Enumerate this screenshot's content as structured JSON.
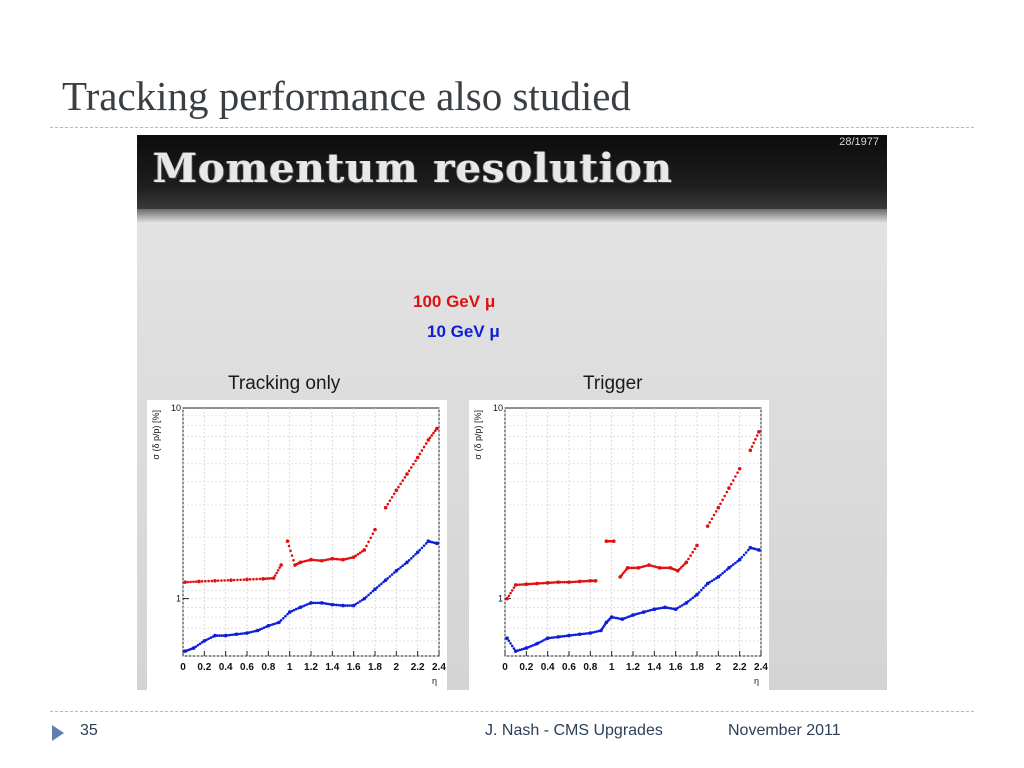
{
  "slide": {
    "title": "Tracking performance also studied",
    "number": "35",
    "author": "J. Nash - CMS Upgrades",
    "date": "November 2011"
  },
  "embedded": {
    "title": "Momentum resolution",
    "page_counter": "28/1977",
    "legend_red": "100 GeV  μ",
    "legend_blue": "10 GeV  μ",
    "colors": {
      "red": "#e01010",
      "blue": "#0c1fd6"
    }
  },
  "chart_data": [
    {
      "type": "scatter",
      "title": "Tracking only",
      "xlabel": "η",
      "ylabel": "σ (δ p/p) [%]",
      "xlim": [
        0,
        2.4
      ],
      "ylim": [
        0.5,
        10
      ],
      "yscale": "log",
      "grid": true,
      "x_ticks": [
        "0",
        "0.2",
        "0.4",
        "0.6",
        "0.8",
        "1",
        "1.2",
        "1.4",
        "1.6",
        "1.8",
        "2",
        "2.2",
        "2.4"
      ],
      "y_ticks": [
        {
          "value": 1,
          "label": "1"
        },
        {
          "value": 10,
          "label": "10"
        }
      ],
      "series": [
        {
          "name": "100 GeV  μ",
          "color": "#e01010",
          "points": [
            [
              0.02,
              1.22
            ],
            [
              0.15,
              1.23
            ],
            [
              0.3,
              1.24
            ],
            [
              0.45,
              1.25
            ],
            [
              0.6,
              1.26
            ],
            [
              0.75,
              1.27
            ],
            [
              0.85,
              1.28
            ],
            [
              0.92,
              1.5
            ],
            [
              0.98,
              2.0
            ],
            [
              1.05,
              1.5
            ],
            [
              1.1,
              1.55
            ],
            [
              1.2,
              1.6
            ],
            [
              1.3,
              1.58
            ],
            [
              1.4,
              1.62
            ],
            [
              1.5,
              1.6
            ],
            [
              1.6,
              1.65
            ],
            [
              1.7,
              1.8
            ],
            [
              1.8,
              2.3
            ],
            [
              1.9,
              3.0
            ],
            [
              2.0,
              3.7
            ],
            [
              2.1,
              4.5
            ],
            [
              2.2,
              5.5
            ],
            [
              2.3,
              6.8
            ],
            [
              2.38,
              7.8
            ]
          ]
        },
        {
          "name": "10 GeV  μ",
          "color": "#0c1fd6",
          "points": [
            [
              0.02,
              0.53
            ],
            [
              0.1,
              0.55
            ],
            [
              0.2,
              0.6
            ],
            [
              0.3,
              0.64
            ],
            [
              0.4,
              0.64
            ],
            [
              0.5,
              0.65
            ],
            [
              0.6,
              0.66
            ],
            [
              0.7,
              0.68
            ],
            [
              0.8,
              0.72
            ],
            [
              0.9,
              0.75
            ],
            [
              1.0,
              0.85
            ],
            [
              1.1,
              0.9
            ],
            [
              1.2,
              0.95
            ],
            [
              1.3,
              0.95
            ],
            [
              1.4,
              0.93
            ],
            [
              1.5,
              0.92
            ],
            [
              1.6,
              0.92
            ],
            [
              1.7,
              1.0
            ],
            [
              1.8,
              1.12
            ],
            [
              1.9,
              1.25
            ],
            [
              2.0,
              1.4
            ],
            [
              2.1,
              1.55
            ],
            [
              2.2,
              1.75
            ],
            [
              2.3,
              2.0
            ],
            [
              2.38,
              1.95
            ]
          ]
        }
      ]
    },
    {
      "type": "scatter",
      "title": "Trigger",
      "xlabel": "η",
      "ylabel": "σ (δ p/p) [%]",
      "xlim": [
        0,
        2.4
      ],
      "ylim": [
        0.5,
        10
      ],
      "yscale": "log",
      "grid": true,
      "x_ticks": [
        "0",
        "0.2",
        "0.4",
        "0.6",
        "0.8",
        "1",
        "1.2",
        "1.4",
        "1.6",
        "1.8",
        "2",
        "2.2",
        "2.4"
      ],
      "y_ticks": [
        {
          "value": 1,
          "label": "1"
        },
        {
          "value": 10,
          "label": "10"
        }
      ],
      "series": [
        {
          "name": "100 GeV  μ",
          "color": "#e01010",
          "points": [
            [
              0.02,
              1.0
            ],
            [
              0.1,
              1.18
            ],
            [
              0.2,
              1.19
            ],
            [
              0.3,
              1.2
            ],
            [
              0.4,
              1.21
            ],
            [
              0.5,
              1.22
            ],
            [
              0.6,
              1.22
            ],
            [
              0.7,
              1.23
            ],
            [
              0.8,
              1.24
            ],
            [
              0.85,
              1.24
            ],
            [
              0.95,
              2.0
            ],
            [
              1.02,
              2.0
            ],
            [
              1.08,
              1.3
            ],
            [
              1.15,
              1.45
            ],
            [
              1.25,
              1.45
            ],
            [
              1.35,
              1.5
            ],
            [
              1.45,
              1.45
            ],
            [
              1.55,
              1.45
            ],
            [
              1.62,
              1.4
            ],
            [
              1.7,
              1.55
            ],
            [
              1.8,
              1.9
            ],
            [
              1.9,
              2.4
            ],
            [
              2.0,
              3.0
            ],
            [
              2.1,
              3.8
            ],
            [
              2.2,
              4.8
            ],
            [
              2.3,
              6.0
            ],
            [
              2.38,
              7.5
            ]
          ]
        },
        {
          "name": "10 GeV  μ",
          "color": "#0c1fd6",
          "points": [
            [
              0.02,
              0.62
            ],
            [
              0.1,
              0.53
            ],
            [
              0.2,
              0.55
            ],
            [
              0.3,
              0.58
            ],
            [
              0.4,
              0.62
            ],
            [
              0.5,
              0.63
            ],
            [
              0.6,
              0.64
            ],
            [
              0.7,
              0.65
            ],
            [
              0.8,
              0.66
            ],
            [
              0.9,
              0.68
            ],
            [
              0.95,
              0.75
            ],
            [
              1.0,
              0.8
            ],
            [
              1.1,
              0.78
            ],
            [
              1.2,
              0.82
            ],
            [
              1.3,
              0.85
            ],
            [
              1.4,
              0.88
            ],
            [
              1.5,
              0.9
            ],
            [
              1.6,
              0.88
            ],
            [
              1.7,
              0.95
            ],
            [
              1.8,
              1.05
            ],
            [
              1.9,
              1.2
            ],
            [
              2.0,
              1.3
            ],
            [
              2.1,
              1.45
            ],
            [
              2.2,
              1.6
            ],
            [
              2.3,
              1.85
            ],
            [
              2.38,
              1.8
            ]
          ]
        }
      ]
    }
  ]
}
